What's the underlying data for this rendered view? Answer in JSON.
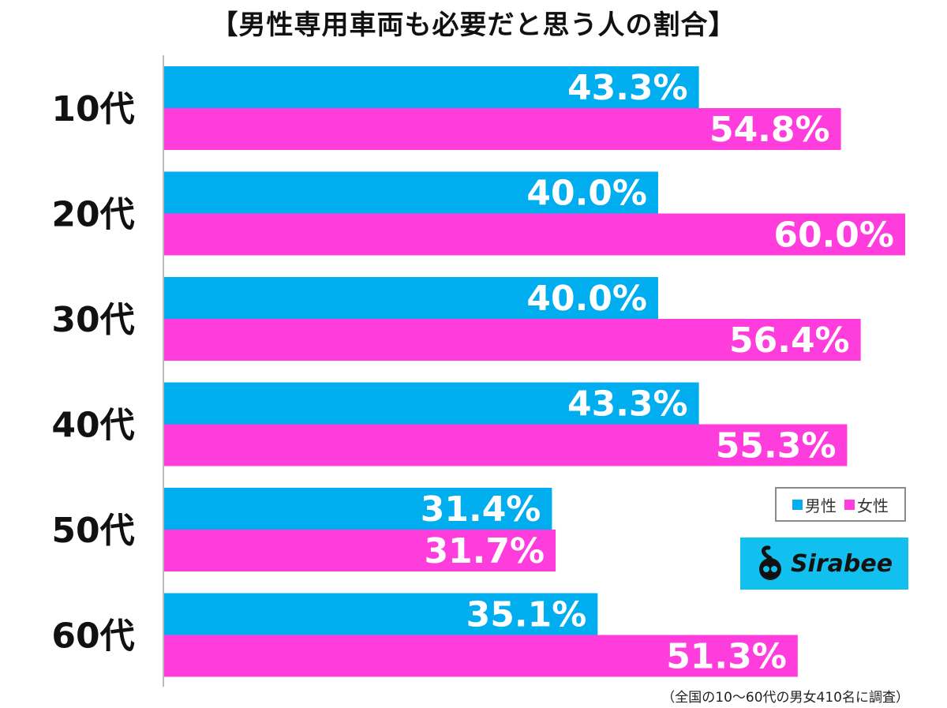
{
  "chart_data": {
    "type": "bar",
    "orientation": "horizontal",
    "title": "【男性専用車両も必要だと思う人の割合】",
    "categories": [
      "10代",
      "20代",
      "30代",
      "40代",
      "50代",
      "60代"
    ],
    "series": [
      {
        "name": "男性",
        "color": "#00aeef",
        "values": [
          43.3,
          40.0,
          40.0,
          43.3,
          31.4,
          35.1
        ],
        "labels": [
          "43.3%",
          "40.0%",
          "40.0%",
          "43.3%",
          "31.4%",
          "35.1%"
        ]
      },
      {
        "name": "女性",
        "color": "#ff3ddc",
        "values": [
          54.8,
          60.0,
          56.4,
          55.3,
          31.7,
          51.3
        ],
        "labels": [
          "54.8%",
          "60.0%",
          "56.4%",
          "55.3%",
          "31.7%",
          "51.3%"
        ]
      }
    ],
    "unit": "%",
    "legend_position": "bottom-right",
    "grid": false
  },
  "logo": {
    "text": "Sirabee",
    "icon": "sirabee-logo-icon"
  },
  "footnote": "（全国の10〜60代の男女410名に調査）"
}
